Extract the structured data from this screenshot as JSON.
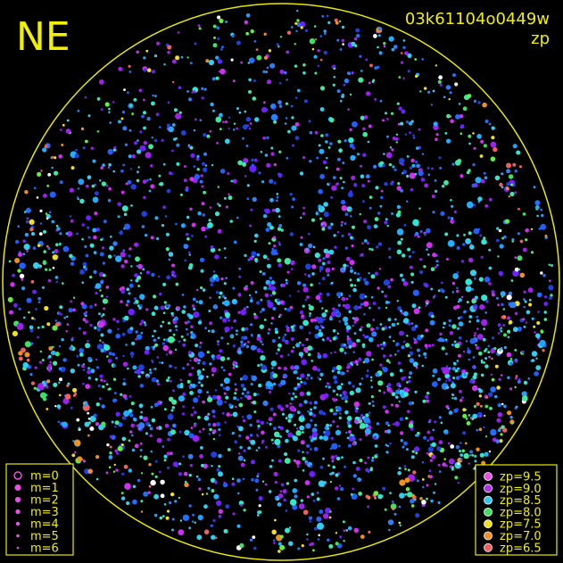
{
  "header": {
    "direction": "NE",
    "frame_id": "03k61104o0449w",
    "mode": "zp"
  },
  "magnitude_legend": [
    "m=0",
    "m=1",
    "m=2",
    "m=3",
    "m=4",
    "m=5",
    "m=6"
  ],
  "zp_legend": [
    {
      "label": "zp=9.5",
      "color": "#e850e8"
    },
    {
      "label": "zp=9.0",
      "color": "#b030f0"
    },
    {
      "label": "zp=8.5",
      "color": "#30c8f0"
    },
    {
      "label": "zp=8.0",
      "color": "#40e060"
    },
    {
      "label": "zp=7.5",
      "color": "#f0e020"
    },
    {
      "label": "zp=7.0",
      "color": "#f09020"
    },
    {
      "label": "zp=6.5",
      "color": "#f06060"
    }
  ]
}
